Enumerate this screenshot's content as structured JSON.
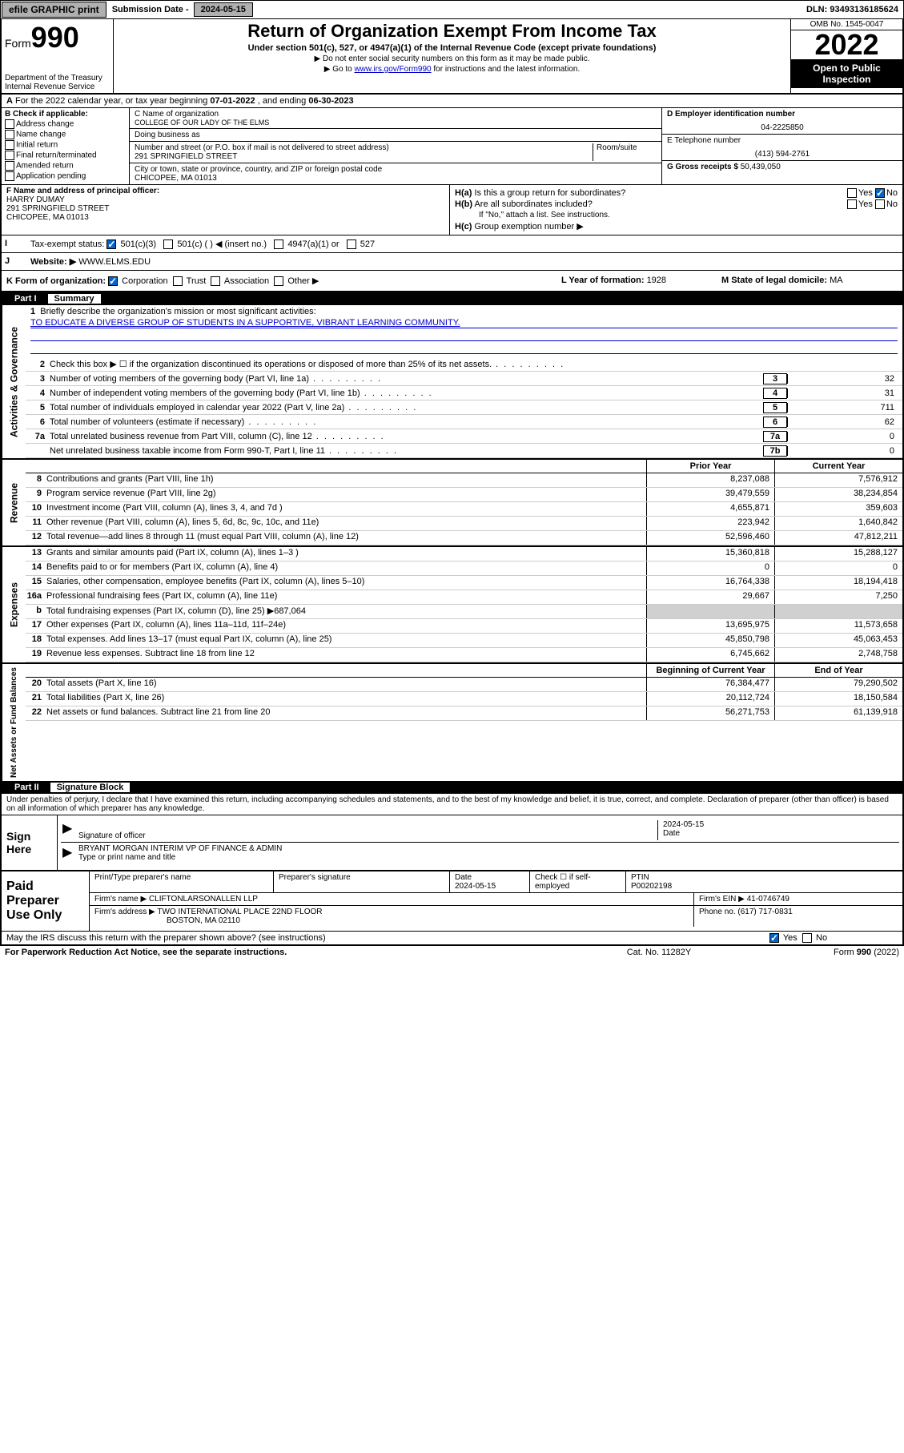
{
  "topbar": {
    "efile": "efile GRAPHIC print",
    "subdate_label": "Submission Date - ",
    "subdate": "2024-05-15",
    "dln_label": "DLN: ",
    "dln": "93493136185624"
  },
  "header": {
    "form_small": "Form",
    "form_big": "990",
    "dept": "Department of the Treasury",
    "irs": "Internal Revenue Service",
    "title": "Return of Organization Exempt From Income Tax",
    "sub": "Under section 501(c), 527, or 4947(a)(1) of the Internal Revenue Code (except private foundations)",
    "note1": "▶ Do not enter social security numbers on this form as it may be made public.",
    "note2_pre": "▶ Go to ",
    "note2_link": "www.irs.gov/Form990",
    "note2_post": " for instructions and the latest information.",
    "omb": "OMB No. 1545-0047",
    "year": "2022",
    "open": "Open to Public Inspection"
  },
  "rowA": {
    "label": "A",
    "text": " For the 2022 calendar year, or tax year beginning ",
    "begin": "07-01-2022",
    "mid": " , and ending ",
    "end": "06-30-2023"
  },
  "colB": {
    "label": "B Check if applicable:",
    "items": [
      "Address change",
      "Name change",
      "Initial return",
      "Final return/terminated",
      "Amended return",
      "Application pending"
    ]
  },
  "colC": {
    "name_label": "C Name of organization",
    "name": "COLLEGE OF OUR LADY OF THE ELMS",
    "dba_label": "Doing business as",
    "dba": "",
    "addr_label": "Number and street (or P.O. box if mail is not delivered to street address)",
    "room_label": "Room/suite",
    "addr": "291 SPRINGFIELD STREET",
    "city_label": "City or town, state or province, country, and ZIP or foreign postal code",
    "city": "CHICOPEE, MA  01013"
  },
  "colDE": {
    "d_label": "D Employer identification number",
    "d_val": "04-2225850",
    "e_label": "E Telephone number",
    "e_val": "(413) 594-2761",
    "g_label": "G Gross receipts $ ",
    "g_val": "50,439,050"
  },
  "rowF": {
    "label": "F Name and address of principal officer:",
    "name": "HARRY DUMAY",
    "addr1": "291 SPRINGFIELD STREET",
    "addr2": "CHICOPEE, MA  01013"
  },
  "rowH": {
    "ha_label": "H(a)",
    "ha_text": "Is this a group return for subordinates?",
    "ha_yes": "Yes",
    "ha_no": "No",
    "hb_label": "H(b)",
    "hb_text": "Are all subordinates included?",
    "hb_note": "If \"No,\" attach a list. See instructions.",
    "hc_label": "H(c)",
    "hc_text": "Group exemption number ▶"
  },
  "rowI": {
    "label": "I",
    "text": "Tax-exempt status:",
    "opt1": "501(c)(3)",
    "opt2": "501(c) (   ) ◀ (insert no.)",
    "opt3": "4947(a)(1) or",
    "opt4": "527"
  },
  "rowJ": {
    "label": "J",
    "text": "Website: ▶",
    "val": "WWW.ELMS.EDU"
  },
  "rowK": {
    "label": "K Form of organization:",
    "opts": [
      "Corporation",
      "Trust",
      "Association",
      "Other ▶"
    ],
    "l_label": "L Year of formation: ",
    "l_val": "1928",
    "m_label": "M State of legal domicile: ",
    "m_val": "MA"
  },
  "part1": {
    "num": "Part I",
    "title": "Summary"
  },
  "vtabs": {
    "ag": "Activities & Governance",
    "rev": "Revenue",
    "exp": "Expenses",
    "nab": "Net Assets or Fund Balances"
  },
  "mission": {
    "num": "1",
    "label": "Briefly describe the organization's mission or most significant activities:",
    "text": "TO EDUCATE A DIVERSE GROUP OF STUDENTS IN A SUPPORTIVE, VIBRANT LEARNING COMMUNITY."
  },
  "lines_ag": [
    {
      "n": "2",
      "d": "Check this box ▶ ☐ if the organization discontinued its operations or disposed of more than 25% of its net assets.",
      "box": "",
      "v": ""
    },
    {
      "n": "3",
      "d": "Number of voting members of the governing body (Part VI, line 1a)",
      "box": "3",
      "v": "32"
    },
    {
      "n": "4",
      "d": "Number of independent voting members of the governing body (Part VI, line 1b)",
      "box": "4",
      "v": "31"
    },
    {
      "n": "5",
      "d": "Total number of individuals employed in calendar year 2022 (Part V, line 2a)",
      "box": "5",
      "v": "711"
    },
    {
      "n": "6",
      "d": "Total number of volunteers (estimate if necessary)",
      "box": "6",
      "v": "62"
    },
    {
      "n": "7a",
      "d": "Total unrelated business revenue from Part VIII, column (C), line 12",
      "box": "7a",
      "v": "0"
    },
    {
      "n": "",
      "d": "Net unrelated business taxable income from Form 990-T, Part I, line 11",
      "box": "7b",
      "v": "0"
    }
  ],
  "col_headers": {
    "prior": "Prior Year",
    "current": "Current Year",
    "begin": "Beginning of Current Year",
    "end": "End of Year"
  },
  "lines_rev": [
    {
      "n": "8",
      "d": "Contributions and grants (Part VIII, line 1h)",
      "v1": "8,237,088",
      "v2": "7,576,912"
    },
    {
      "n": "9",
      "d": "Program service revenue (Part VIII, line 2g)",
      "v1": "39,479,559",
      "v2": "38,234,854"
    },
    {
      "n": "10",
      "d": "Investment income (Part VIII, column (A), lines 3, 4, and 7d )",
      "v1": "4,655,871",
      "v2": "359,603"
    },
    {
      "n": "11",
      "d": "Other revenue (Part VIII, column (A), lines 5, 6d, 8c, 9c, 10c, and 11e)",
      "v1": "223,942",
      "v2": "1,640,842"
    },
    {
      "n": "12",
      "d": "Total revenue—add lines 8 through 11 (must equal Part VIII, column (A), line 12)",
      "v1": "52,596,460",
      "v2": "47,812,211"
    }
  ],
  "lines_exp": [
    {
      "n": "13",
      "d": "Grants and similar amounts paid (Part IX, column (A), lines 1–3 )",
      "v1": "15,360,818",
      "v2": "15,288,127"
    },
    {
      "n": "14",
      "d": "Benefits paid to or for members (Part IX, column (A), line 4)",
      "v1": "0",
      "v2": "0"
    },
    {
      "n": "15",
      "d": "Salaries, other compensation, employee benefits (Part IX, column (A), lines 5–10)",
      "v1": "16,764,338",
      "v2": "18,194,418"
    },
    {
      "n": "16a",
      "d": "Professional fundraising fees (Part IX, column (A), line 11e)",
      "v1": "29,667",
      "v2": "7,250"
    },
    {
      "n": "b",
      "d": "Total fundraising expenses (Part IX, column (D), line 25) ▶687,064",
      "v1": "",
      "v2": "",
      "shaded": true
    },
    {
      "n": "17",
      "d": "Other expenses (Part IX, column (A), lines 11a–11d, 11f–24e)",
      "v1": "13,695,975",
      "v2": "11,573,658"
    },
    {
      "n": "18",
      "d": "Total expenses. Add lines 13–17 (must equal Part IX, column (A), line 25)",
      "v1": "45,850,798",
      "v2": "45,063,453"
    },
    {
      "n": "19",
      "d": "Revenue less expenses. Subtract line 18 from line 12",
      "v1": "6,745,662",
      "v2": "2,748,758"
    }
  ],
  "lines_nab": [
    {
      "n": "20",
      "d": "Total assets (Part X, line 16)",
      "v1": "76,384,477",
      "v2": "79,290,502"
    },
    {
      "n": "21",
      "d": "Total liabilities (Part X, line 26)",
      "v1": "20,112,724",
      "v2": "18,150,584"
    },
    {
      "n": "22",
      "d": "Net assets or fund balances. Subtract line 21 from line 20",
      "v1": "56,271,753",
      "v2": "61,139,918"
    }
  ],
  "part2": {
    "num": "Part II",
    "title": "Signature Block"
  },
  "sig_intro": "Under penalties of perjury, I declare that I have examined this return, including accompanying schedules and statements, and to the best of my knowledge and belief, it is true, correct, and complete. Declaration of preparer (other than officer) is based on all information of which preparer has any knowledge.",
  "sign": {
    "label": "Sign Here",
    "sig_label": "Signature of officer",
    "date_label": "Date",
    "date": "2024-05-15",
    "name": "BRYANT MORGAN INTERIM VP OF FINANCE & ADMIN",
    "name_label": "Type or print name and title"
  },
  "prep": {
    "label": "Paid Preparer Use Only",
    "h1": "Print/Type preparer's name",
    "h2": "Preparer's signature",
    "h3": "Date",
    "h3v": "2024-05-15",
    "h4": "Check ☐ if self-employed",
    "h5": "PTIN",
    "h5v": "P00202198",
    "firm_label": "Firm's name    ▶",
    "firm": "CLIFTONLARSONALLEN LLP",
    "ein_label": "Firm's EIN ▶",
    "ein": "41-0746749",
    "addr_label": "Firm's address ▶",
    "addr1": "TWO INTERNATIONAL PLACE 22ND FLOOR",
    "addr2": "BOSTON, MA  02110",
    "phone_label": "Phone no. ",
    "phone": "(617) 717-0831"
  },
  "footer_q": "May the IRS discuss this return with the preparer shown above? (see instructions)",
  "footer_yes": "Yes",
  "footer_no": "No",
  "bottom": {
    "l": "For Paperwork Reduction Act Notice, see the separate instructions.",
    "m": "Cat. No. 11282Y",
    "r": "Form 990 (2022)"
  }
}
